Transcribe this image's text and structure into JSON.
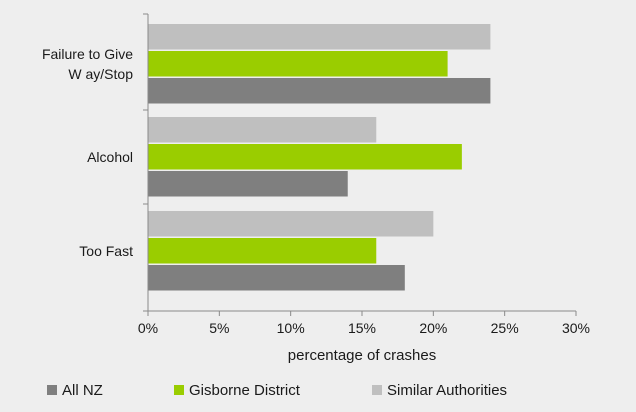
{
  "chart_data": {
    "type": "bar",
    "orientation": "horizontal",
    "categories": [
      "Failure to Give Way/Stop",
      "Alcohol",
      "Too Fast"
    ],
    "category_label_lines": [
      [
        "Failure to Give",
        "W ay/Stop"
      ],
      [
        "Alcohol"
      ],
      [
        "Too Fast"
      ]
    ],
    "series": [
      {
        "name": "Similar Authorities",
        "color": "#bfbfbf",
        "values": [
          24,
          16,
          20
        ]
      },
      {
        "name": "Gisborne District",
        "color": "#9acd00",
        "values": [
          21,
          22,
          16
        ]
      },
      {
        "name": "All NZ",
        "color": "#7f7f7f",
        "values": [
          24,
          14,
          18
        ]
      }
    ],
    "xlabel": "percentage of crashes",
    "xlim": [
      0,
      30
    ],
    "xticks": [
      "0%",
      "5%",
      "10%",
      "15%",
      "20%",
      "25%",
      "30%"
    ],
    "legend": {
      "placement": "bottom",
      "entries": [
        "All NZ",
        "Gisborne District",
        "Similar Authorities"
      ]
    },
    "grid": false
  }
}
